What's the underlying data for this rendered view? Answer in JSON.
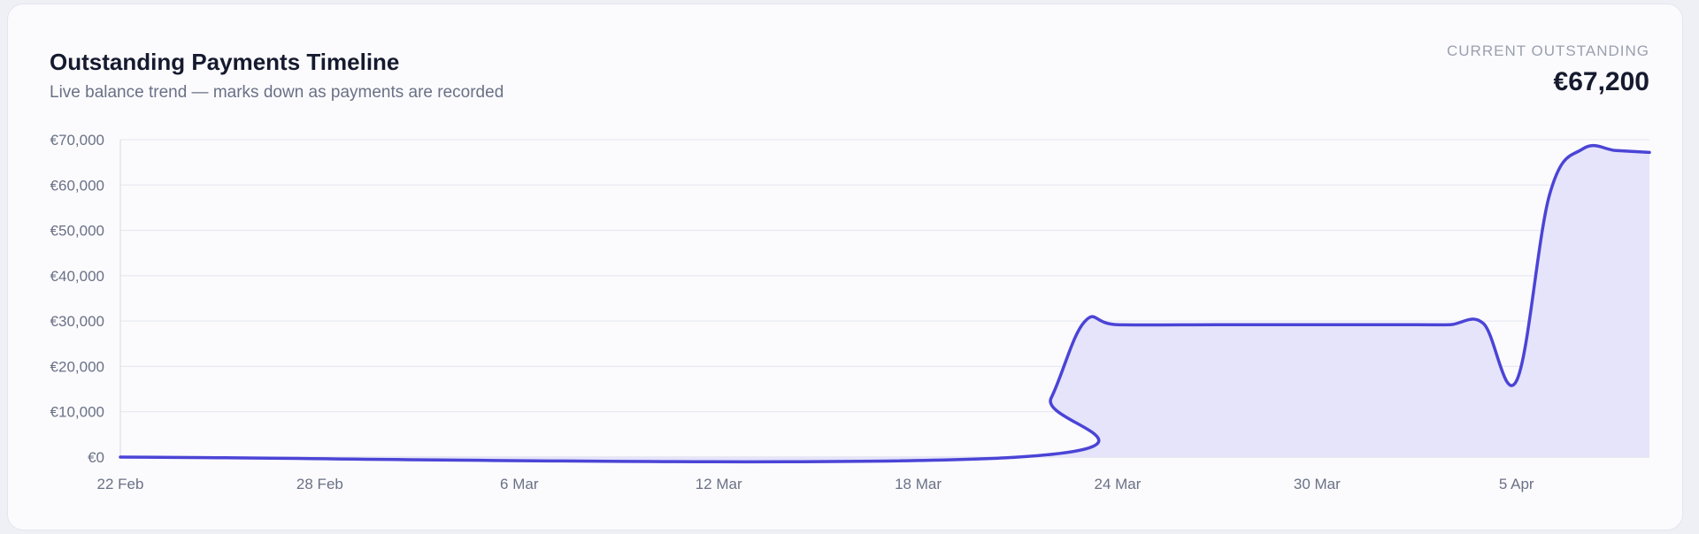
{
  "header": {
    "title": "Outstanding Payments Timeline",
    "subtitle": "Live balance trend — marks down as payments are recorded"
  },
  "kpi": {
    "label": "CURRENT OUTSTANDING",
    "value": "€67,200"
  },
  "chart_data": {
    "type": "area",
    "title": "Outstanding Payments Timeline",
    "xlabel": "",
    "ylabel": "",
    "x_ticks": [
      "22 Feb",
      "28 Feb",
      "6 Mar",
      "12 Mar",
      "18 Mar",
      "24 Mar",
      "30 Mar",
      "5 Apr"
    ],
    "y_ticks": [
      "€0",
      "€10,000",
      "€20,000",
      "€30,000",
      "€40,000",
      "€50,000",
      "€60,000",
      "€70,000"
    ],
    "xlim": [
      "2024-02-22",
      "2024-04-08"
    ],
    "ylim": [
      0,
      70000
    ],
    "grid": true,
    "legend": "none",
    "colors": {
      "line": "#4b44d6",
      "fill": "#e5e4fa",
      "grid": "#e4e6ee"
    },
    "series": [
      {
        "points": [
          {
            "x": "2024-02-22",
            "y": 0
          },
          {
            "x": "2024-03-20",
            "y": 0
          },
          {
            "x": "2024-03-21",
            "y": 13000
          },
          {
            "x": "2024-03-22",
            "y": 29800
          },
          {
            "x": "2024-03-23",
            "y": 29200
          },
          {
            "x": "2024-03-26",
            "y": 29200
          },
          {
            "x": "2024-03-29",
            "y": 29200
          },
          {
            "x": "2024-04-01",
            "y": 29200
          },
          {
            "x": "2024-04-02",
            "y": 29200
          },
          {
            "x": "2024-04-03",
            "y": 29500
          },
          {
            "x": "2024-04-04",
            "y": 16800
          },
          {
            "x": "2024-04-05",
            "y": 58000
          },
          {
            "x": "2024-04-06",
            "y": 68000
          },
          {
            "x": "2024-04-07",
            "y": 67600
          },
          {
            "x": "2024-04-08",
            "y": 67200
          }
        ]
      }
    ]
  }
}
